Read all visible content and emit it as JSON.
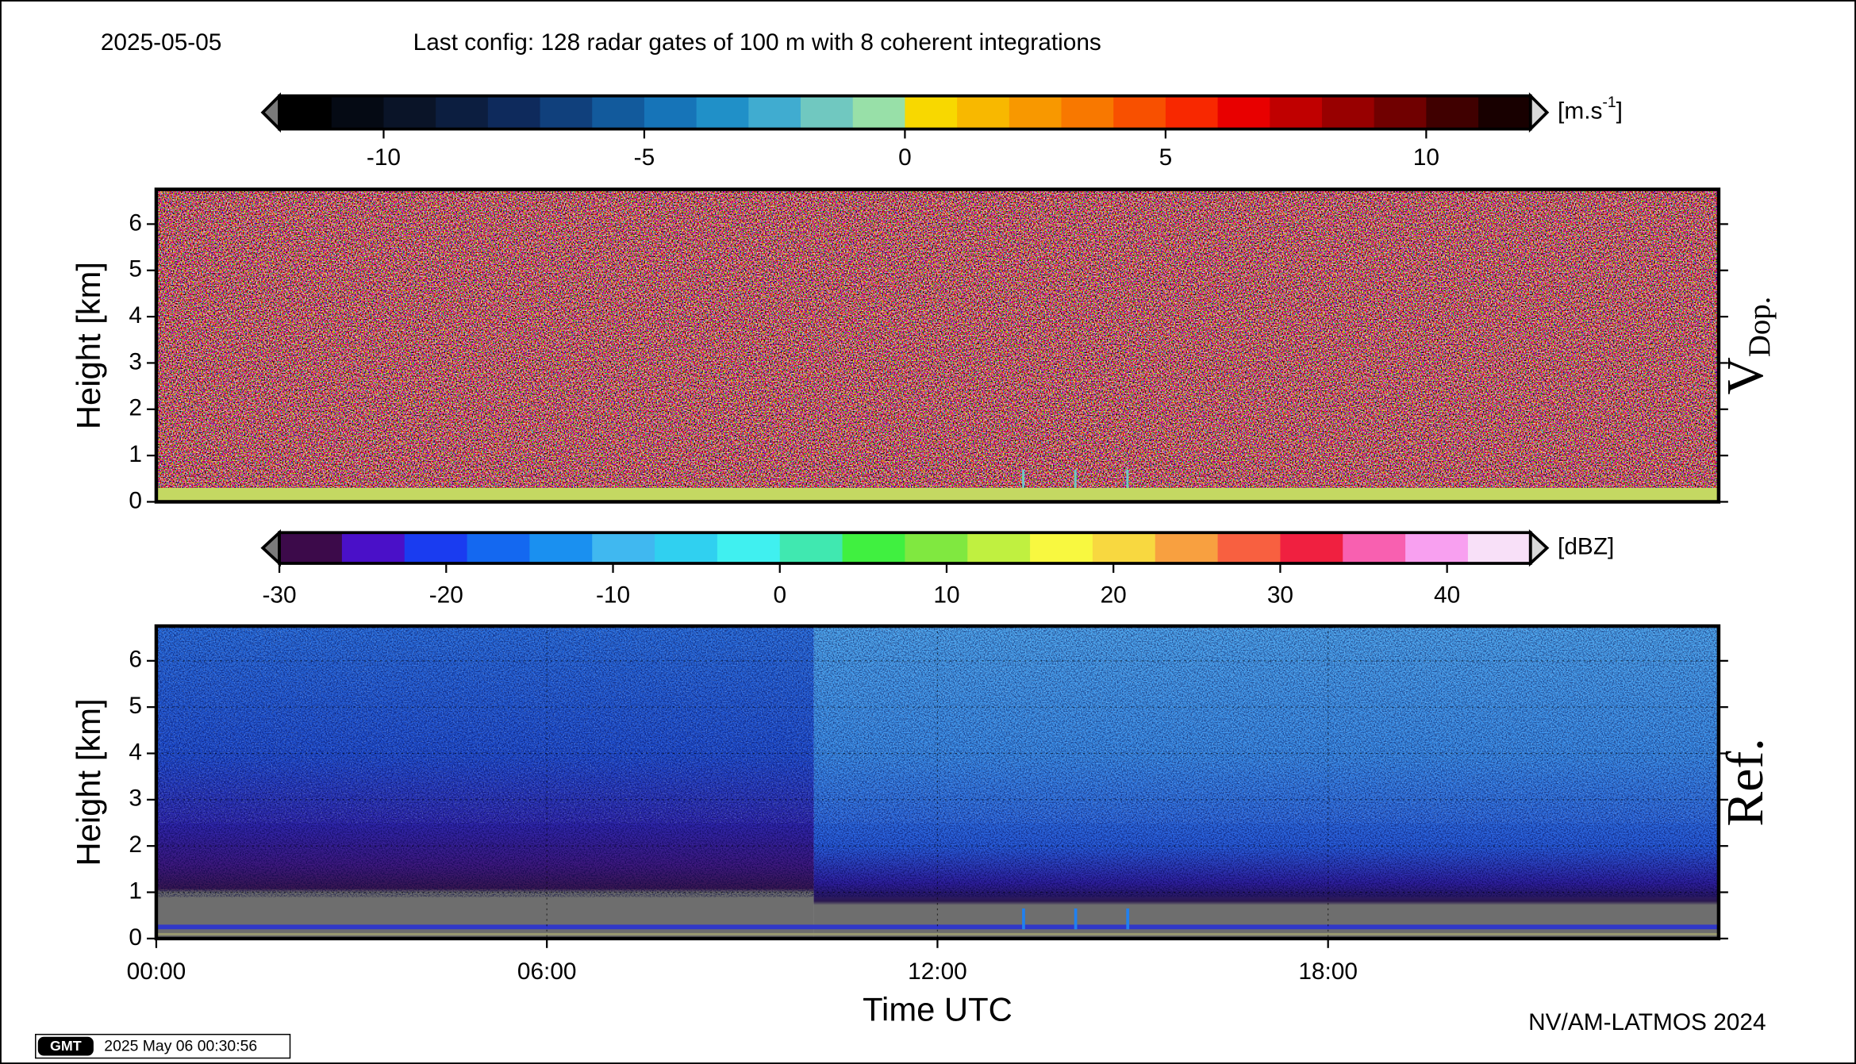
{
  "header": {
    "date": "2025-05-05",
    "config": "Last config: 128 radar gates of 100 m with 8 coherent integrations"
  },
  "chart_data": [
    {
      "type": "heatmap",
      "label": "V",
      "label_sub": "Dop.",
      "ylabel": "Height [km]",
      "xlim": [
        0,
        24
      ],
      "ylim": [
        0,
        6.75
      ],
      "yticks": [
        0,
        1,
        2,
        3,
        4,
        5,
        6
      ],
      "colorbar": {
        "unit": "[m.s",
        "unit_sup": "-1",
        "unit_close": "]",
        "clim": [
          -12,
          12
        ],
        "ticks": [
          -10,
          -5,
          0,
          5,
          10
        ],
        "colors": [
          "#000000",
          "#050a14",
          "#0a1428",
          "#0c1e40",
          "#0e2a5c",
          "#10407c",
          "#125a9c",
          "#1674b8",
          "#2090c8",
          "#40acd0",
          "#70c8c0",
          "#98e0a8",
          "#f8d800",
          "#f8b800",
          "#f89800",
          "#f87800",
          "#f85000",
          "#f82800",
          "#e80000",
          "#c00000",
          "#980000",
          "#700000",
          "#400000",
          "#180000"
        ]
      }
    },
    {
      "type": "heatmap",
      "label": "Ref.",
      "ylabel": "Height [km]",
      "xlabel": "Time UTC",
      "xlim": [
        0,
        24
      ],
      "xticks": [
        {
          "value": 0,
          "label": "00:00"
        },
        {
          "value": 6,
          "label": "06:00"
        },
        {
          "value": 12,
          "label": "12:00"
        },
        {
          "value": 18,
          "label": "18:00"
        }
      ],
      "ylim": [
        0,
        6.75
      ],
      "yticks": [
        0,
        1,
        2,
        3,
        4,
        5,
        6
      ],
      "grid": true,
      "colorbar": {
        "unit": "[dBZ]",
        "clim": [
          -30,
          45
        ],
        "ticks": [
          -30,
          -20,
          -10,
          0,
          10,
          20,
          30,
          40
        ],
        "colors": [
          "#3c0a4a",
          "#4a10c8",
          "#1a3cf0",
          "#1468f0",
          "#1a90f0",
          "#40b8f0",
          "#30d0f0",
          "#40f0f0",
          "#40e8b0",
          "#40f040",
          "#80e840",
          "#c0f040",
          "#f8f840",
          "#f8d840",
          "#f8a040",
          "#f86040",
          "#f02040",
          "#f860b0",
          "#f8a0f0",
          "#f8e0f8"
        ]
      }
    }
  ],
  "footer": {
    "credit": "NV/AM-LATMOS 2024",
    "gmt_logo": "GMT",
    "gmt_stamp": "2025 May 06 00:30:56"
  }
}
